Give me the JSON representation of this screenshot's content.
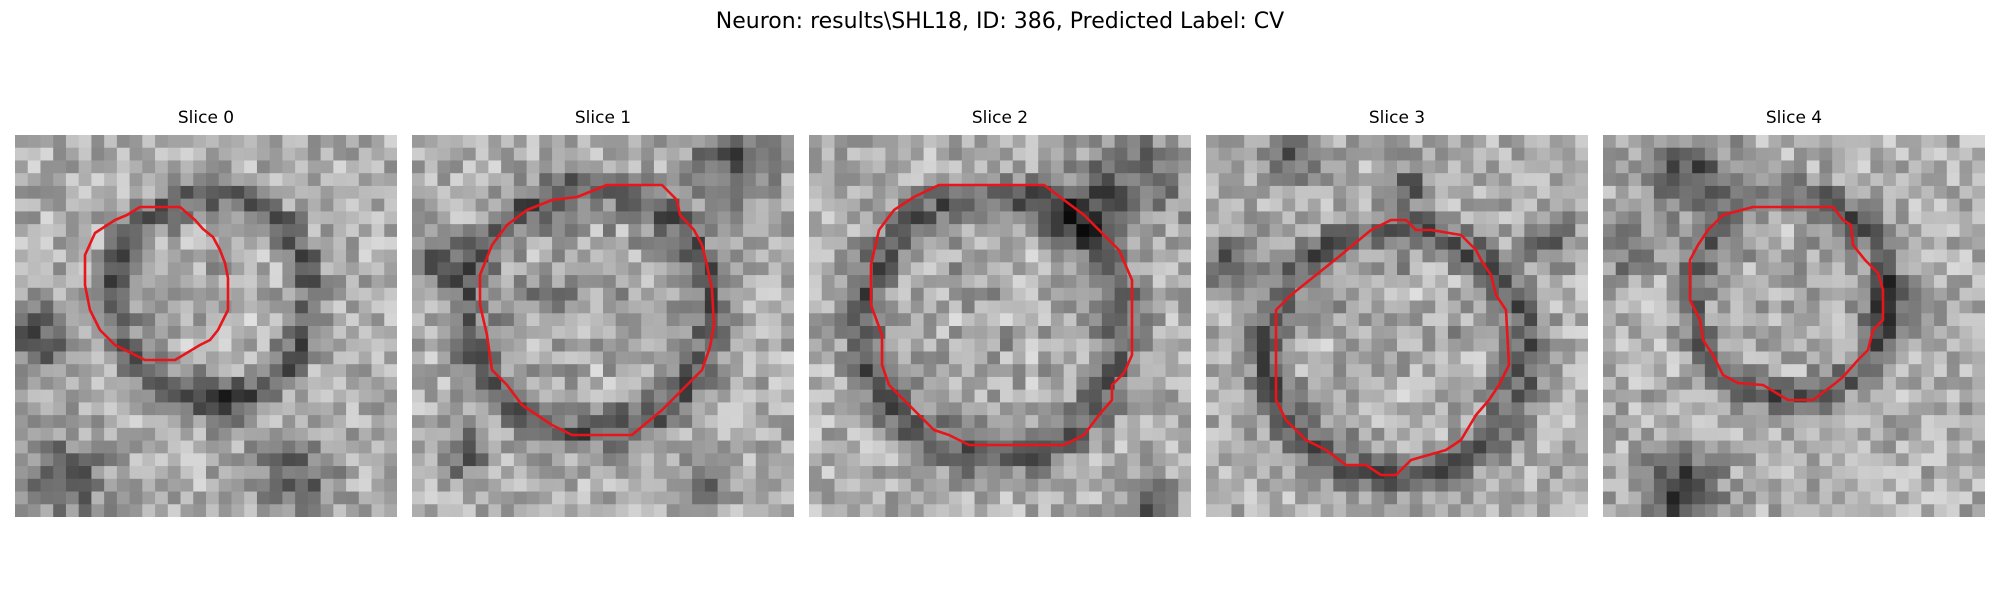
{
  "figure": {
    "title": "Neuron: results\\SHL18, ID: 386, Predicted Label: CV"
  },
  "panels": [
    {
      "title": "Slice 0"
    },
    {
      "title": "Slice 1"
    },
    {
      "title": "Slice 2"
    },
    {
      "title": "Slice 3"
    },
    {
      "title": "Slice 4"
    }
  ],
  "colors": {
    "contour": "#e8151b",
    "background": "#ffffff",
    "image_style": "grayscale"
  }
}
